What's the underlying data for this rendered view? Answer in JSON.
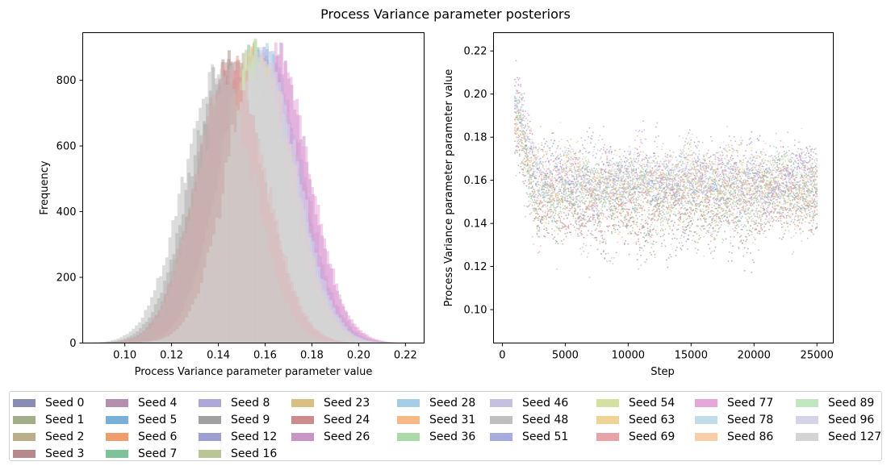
{
  "figure": {
    "title": "Process Variance parameter posteriors"
  },
  "chart_data": [
    {
      "type": "histogram",
      "title": "",
      "xlabel": "Process Variance parameter parameter value",
      "ylabel": "Frequency",
      "xlim": [
        0.082,
        0.228
      ],
      "ylim": [
        0,
        945
      ],
      "xticks": [
        0.1,
        0.12,
        0.14,
        0.16,
        0.18,
        0.2,
        0.22
      ],
      "xtick_labels": [
        "0.10",
        "0.12",
        "0.14",
        "0.16",
        "0.18",
        "0.20",
        "0.22"
      ],
      "yticks": [
        0,
        200,
        400,
        600,
        800
      ],
      "ytick_labels": [
        "0",
        "200",
        "400",
        "600",
        "800"
      ],
      "bin_width": 0.0013,
      "samples_per_seed": 24000,
      "grid": false,
      "series": [
        {
          "name": "Seed 0",
          "mean": 0.158,
          "sd": 0.0145
        },
        {
          "name": "Seed 1",
          "mean": 0.146,
          "sd": 0.015
        },
        {
          "name": "Seed 2",
          "mean": 0.148,
          "sd": 0.015
        },
        {
          "name": "Seed 3",
          "mean": 0.145,
          "sd": 0.0148
        },
        {
          "name": "Seed 4",
          "mean": 0.161,
          "sd": 0.0145
        },
        {
          "name": "Seed 5",
          "mean": 0.16,
          "sd": 0.0145
        },
        {
          "name": "Seed 6",
          "mean": 0.157,
          "sd": 0.0145
        },
        {
          "name": "Seed 7",
          "mean": 0.156,
          "sd": 0.0145
        },
        {
          "name": "Seed 8",
          "mean": 0.162,
          "sd": 0.0145
        },
        {
          "name": "Seed 9",
          "mean": 0.143,
          "sd": 0.015
        },
        {
          "name": "Seed 12",
          "mean": 0.16,
          "sd": 0.0145
        },
        {
          "name": "Seed 16",
          "mean": 0.155,
          "sd": 0.0145
        },
        {
          "name": "Seed 23",
          "mean": 0.157,
          "sd": 0.0145
        },
        {
          "name": "Seed 24",
          "mean": 0.145,
          "sd": 0.0148
        },
        {
          "name": "Seed 26",
          "mean": 0.164,
          "sd": 0.0145
        },
        {
          "name": "Seed 28",
          "mean": 0.16,
          "sd": 0.0145
        },
        {
          "name": "Seed 31",
          "mean": 0.156,
          "sd": 0.0145
        },
        {
          "name": "Seed 36",
          "mean": 0.155,
          "sd": 0.0145
        },
        {
          "name": "Seed 46",
          "mean": 0.16,
          "sd": 0.0145
        },
        {
          "name": "Seed 48",
          "mean": 0.14,
          "sd": 0.015
        },
        {
          "name": "Seed 51",
          "mean": 0.16,
          "sd": 0.0145
        },
        {
          "name": "Seed 54",
          "mean": 0.155,
          "sd": 0.0145
        },
        {
          "name": "Seed 63",
          "mean": 0.157,
          "sd": 0.0145
        },
        {
          "name": "Seed 69",
          "mean": 0.146,
          "sd": 0.0148
        },
        {
          "name": "Seed 77",
          "mean": 0.165,
          "sd": 0.0145
        },
        {
          "name": "Seed 78",
          "mean": 0.159,
          "sd": 0.0145
        },
        {
          "name": "Seed 86",
          "mean": 0.158,
          "sd": 0.0145
        },
        {
          "name": "Seed 89",
          "mean": 0.155,
          "sd": 0.0145
        },
        {
          "name": "Seed 96",
          "mean": 0.16,
          "sd": 0.0145
        },
        {
          "name": "Seed 127",
          "mean": 0.158,
          "sd": 0.0145
        }
      ]
    },
    {
      "type": "scatter",
      "title": "",
      "xlabel": "Step",
      "ylabel": "Process Variance parameter parameter value",
      "xlim": [
        -700,
        26300
      ],
      "ylim": [
        0.0845,
        0.2285
      ],
      "xticks": [
        0,
        5000,
        10000,
        15000,
        20000,
        25000
      ],
      "xtick_labels": [
        "0",
        "5000",
        "10000",
        "15000",
        "20000",
        "25000"
      ],
      "yticks": [
        0.1,
        0.12,
        0.14,
        0.16,
        0.18,
        0.2,
        0.22
      ],
      "ytick_labels": [
        "0.10",
        "0.12",
        "0.14",
        "0.16",
        "0.18",
        "0.20",
        "0.22"
      ],
      "step_range": [
        1000,
        25000
      ],
      "grid": false
    }
  ],
  "legend": {
    "placement": "bottom",
    "columns": [
      [
        {
          "label": "Seed 0",
          "color": "#8a8db3"
        },
        {
          "label": "Seed 1",
          "color": "#a0ae89"
        },
        {
          "label": "Seed 2",
          "color": "#bcae8b"
        },
        {
          "label": "Seed 3",
          "color": "#b58a8c"
        }
      ],
      [
        {
          "label": "Seed 4",
          "color": "#b48fae"
        },
        {
          "label": "Seed 5",
          "color": "#7aafd8"
        },
        {
          "label": "Seed 6",
          "color": "#f19c6b"
        },
        {
          "label": "Seed 7",
          "color": "#7ec29a"
        }
      ],
      [
        {
          "label": "Seed 8",
          "color": "#aea8d6"
        },
        {
          "label": "Seed 9",
          "color": "#a0a0a0"
        },
        {
          "label": "Seed 12",
          "color": "#9c9fcf"
        },
        {
          "label": "Seed 16",
          "color": "#b9c596"
        }
      ],
      [
        {
          "label": "Seed 23",
          "color": "#d9c082"
        },
        {
          "label": "Seed 24",
          "color": "#cc8c8c"
        },
        {
          "label": "Seed 26",
          "color": "#c994c6"
        }
      ],
      [
        {
          "label": "Seed 28",
          "color": "#a5cde8"
        },
        {
          "label": "Seed 31",
          "color": "#f8b887"
        },
        {
          "label": "Seed 36",
          "color": "#acd9a8"
        }
      ],
      [
        {
          "label": "Seed 46",
          "color": "#c3c0e0"
        },
        {
          "label": "Seed 48",
          "color": "#bfbfbf"
        },
        {
          "label": "Seed 51",
          "color": "#a6acde"
        }
      ],
      [
        {
          "label": "Seed 54",
          "color": "#d3e0a4"
        },
        {
          "label": "Seed 63",
          "color": "#efd396"
        },
        {
          "label": "Seed 69",
          "color": "#e8a2a8"
        }
      ],
      [
        {
          "label": "Seed 77",
          "color": "#e5a6da"
        },
        {
          "label": "Seed 78",
          "color": "#c1dcea"
        },
        {
          "label": "Seed 86",
          "color": "#f9cda8"
        }
      ],
      [
        {
          "label": "Seed 89",
          "color": "#c2e6c2"
        },
        {
          "label": "Seed 96",
          "color": "#d5d3ea"
        },
        {
          "label": "Seed 127",
          "color": "#d4d4d4"
        }
      ]
    ]
  }
}
